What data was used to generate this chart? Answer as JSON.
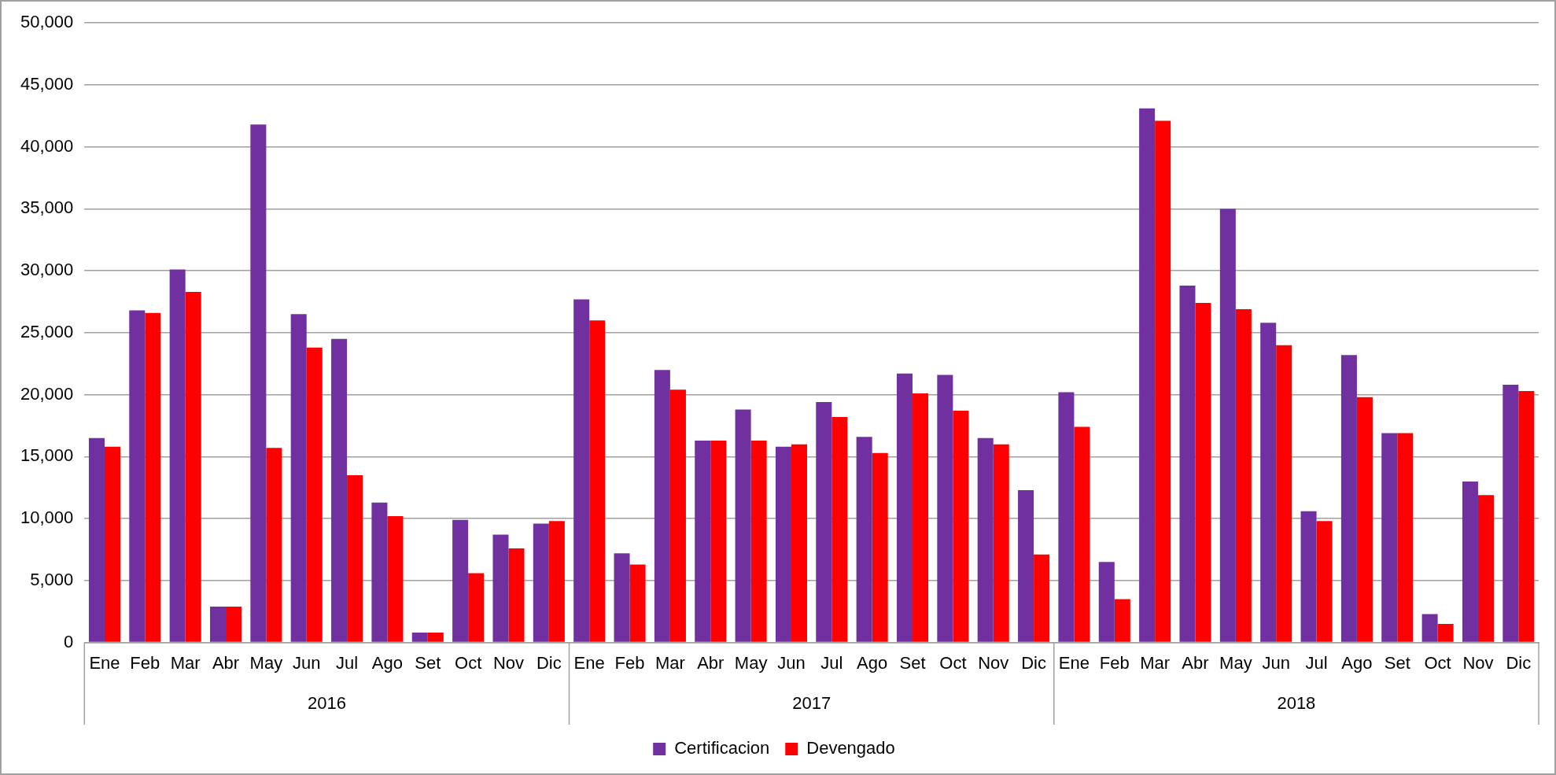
{
  "chart_data": {
    "type": "bar",
    "categories": [
      "Ene",
      "Feb",
      "Mar",
      "Abr",
      "May",
      "Jun",
      "Jul",
      "Ago",
      "Set",
      "Oct",
      "Nov",
      "Dic",
      "Ene",
      "Feb",
      "Mar",
      "Abr",
      "May",
      "Jun",
      "Jul",
      "Ago",
      "Set",
      "Oct",
      "Nov",
      "Dic",
      "Ene",
      "Feb",
      "Mar",
      "Abr",
      "May",
      "Jun",
      "Jul",
      "Ago",
      "Set",
      "Oct",
      "Nov",
      "Dic"
    ],
    "series": [
      {
        "name": "Certificacion",
        "color": "#7030a0",
        "values": [
          16500,
          26800,
          30100,
          2900,
          41800,
          26500,
          24500,
          11300,
          800,
          9900,
          8700,
          9600,
          27700,
          7200,
          22000,
          16300,
          18800,
          15800,
          19400,
          16600,
          21700,
          21600,
          16500,
          12300,
          20200,
          6500,
          43100,
          28800,
          35000,
          25800,
          10600,
          23200,
          16900,
          2300,
          13000,
          20800
        ]
      },
      {
        "name": "Devengado",
        "color": "#ff0000",
        "values": [
          15800,
          26600,
          28300,
          2900,
          15700,
          23800,
          13500,
          10200,
          800,
          5600,
          7600,
          9800,
          26000,
          6300,
          20400,
          16300,
          16300,
          16000,
          18200,
          15300,
          20100,
          18700,
          16000,
          7100,
          17400,
          3500,
          42100,
          27400,
          26900,
          24000,
          9800,
          19800,
          16900,
          1500,
          11900,
          20300
        ]
      }
    ],
    "annotations": [
      "2016",
      "2017",
      "2018"
    ],
    "ylim": [
      0,
      50000
    ],
    "yticks": [
      0,
      {
        "value": 5000,
        "label": "5,000"
      },
      {
        "value": 10000,
        "label": "10,000"
      },
      {
        "value": 15000,
        "label": "15,000"
      },
      {
        "value": 20000,
        "label": "20,000"
      },
      {
        "value": 25000,
        "label": "25,000"
      },
      {
        "value": 30000,
        "label": "30,000"
      },
      {
        "value": 35000,
        "label": "35,000"
      },
      {
        "value": 40000,
        "label": "40,000"
      },
      {
        "value": 45000,
        "label": "45,000"
      },
      {
        "value": 50000,
        "label": "50,000"
      }
    ],
    "grid": "y",
    "legend": "bottom"
  }
}
